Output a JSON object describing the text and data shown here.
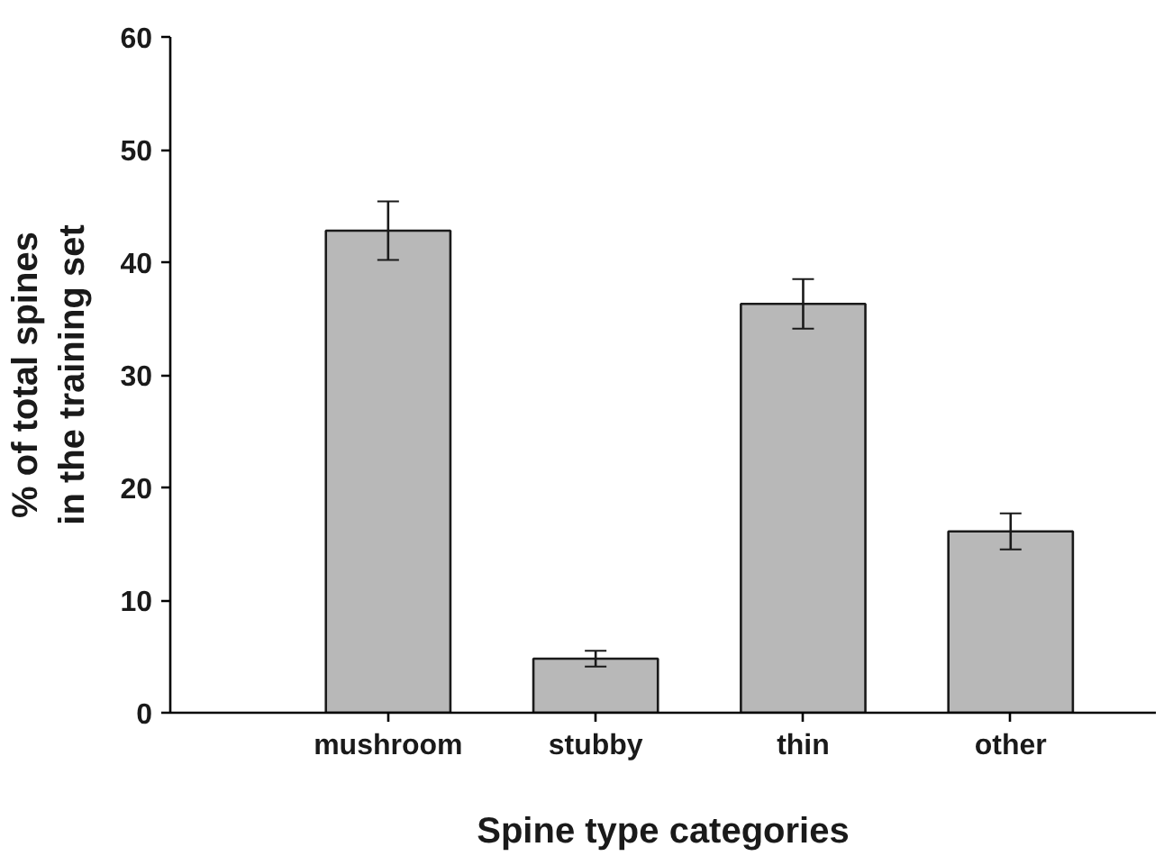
{
  "chart_data": {
    "type": "bar",
    "xlabel": "Spine type categories",
    "ylabel": "% of total spines\nin the training set",
    "categories": [
      "mushroom",
      "stubby",
      "thin",
      "other"
    ],
    "values": [
      42.8,
      4.8,
      36.3,
      16.1
    ],
    "errors": [
      2.6,
      0.7,
      2.2,
      1.6
    ],
    "color": "#b8b8b8",
    "ylim": [
      0,
      60
    ],
    "yticks": [
      0,
      10,
      20,
      30,
      40,
      50,
      60
    ],
    "grid": false
  }
}
